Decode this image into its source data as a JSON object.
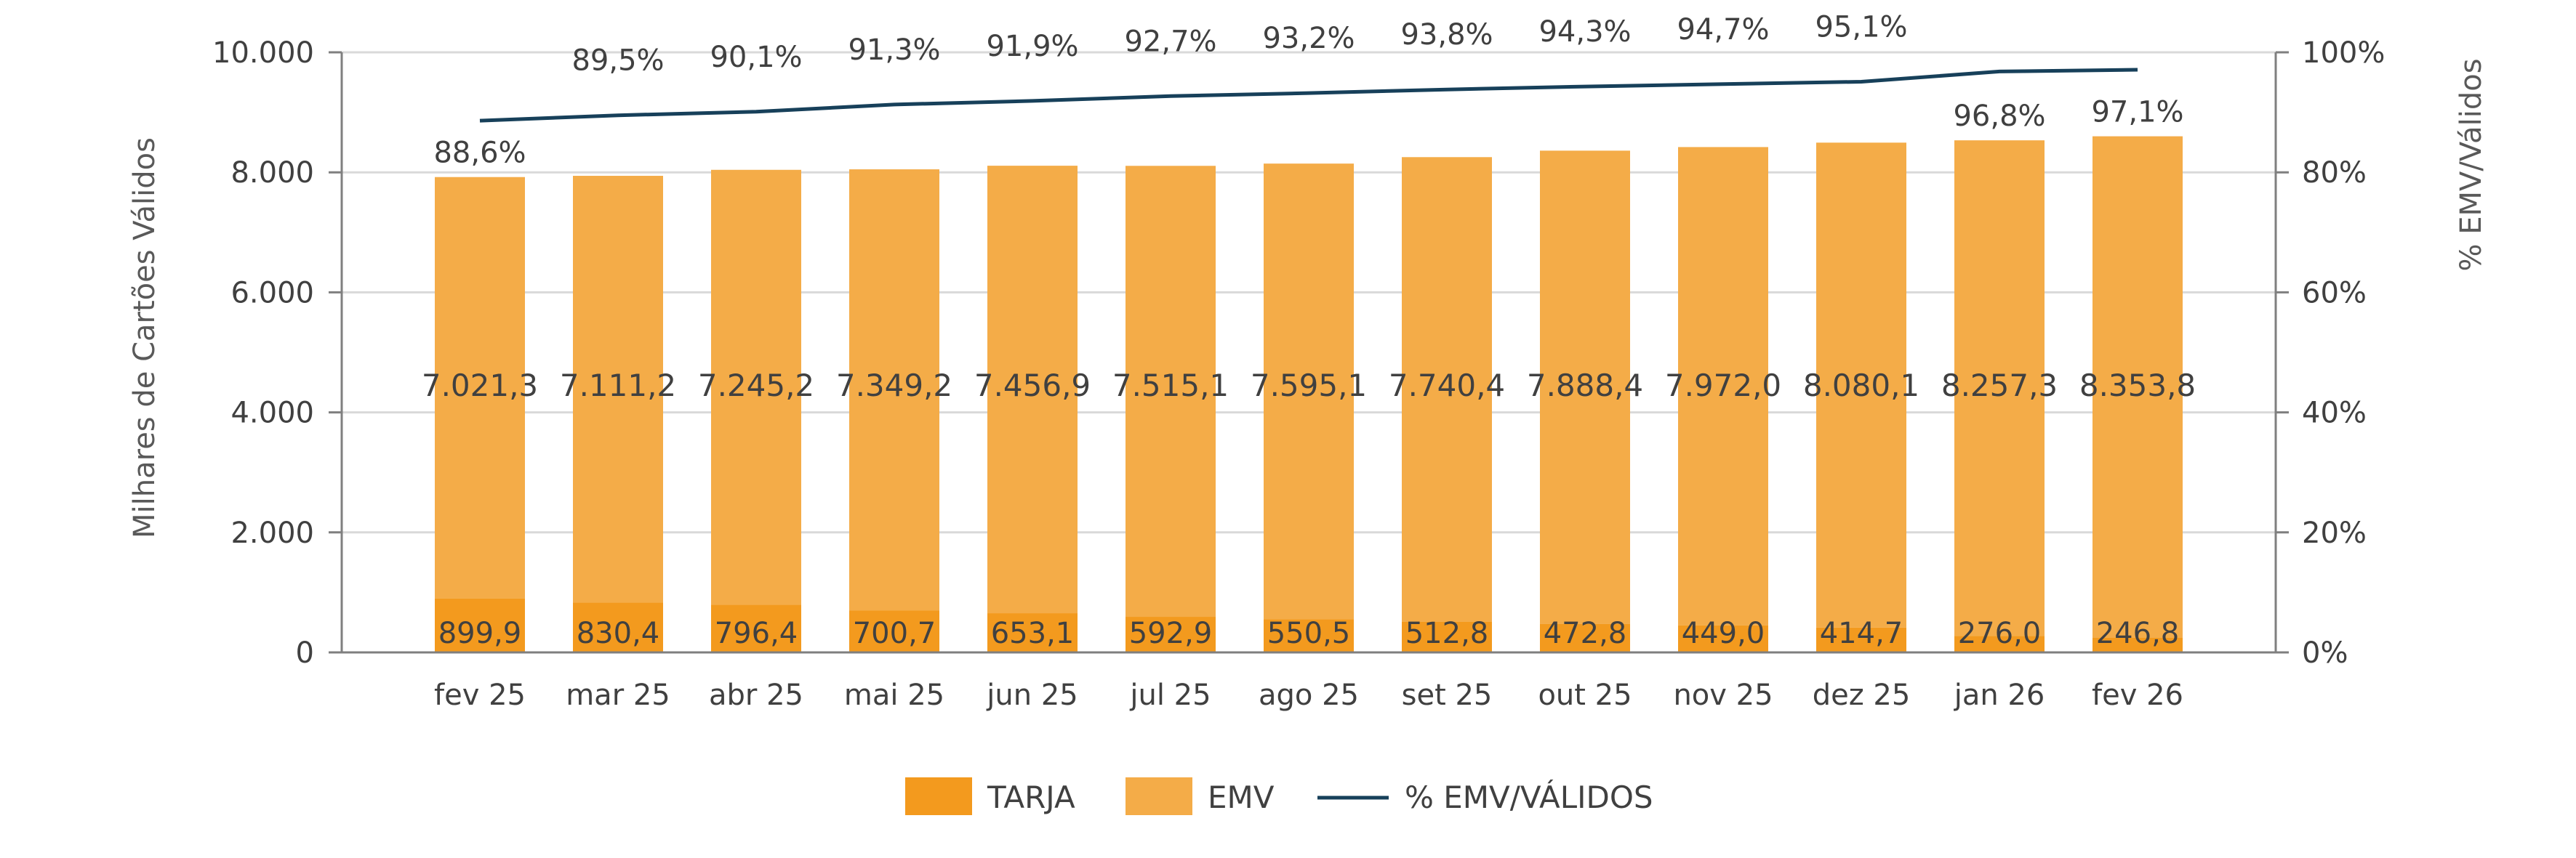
{
  "chart_data": {
    "type": "bar",
    "stacked": true,
    "categories": [
      "fev 25",
      "mar 25",
      "abr 25",
      "mai 25",
      "jun 25",
      "jul 25",
      "ago 25",
      "set 25",
      "out 25",
      "nov 25",
      "dez 25",
      "jan 26",
      "fev 26"
    ],
    "series": [
      {
        "name": "TARJA",
        "color": "#F39A1E",
        "values": [
          899.9,
          830.4,
          796.4,
          700.7,
          653.1,
          592.9,
          550.5,
          512.8,
          472.8,
          449.0,
          414.7,
          276.0,
          246.8
        ],
        "labels": [
          "899,9",
          "830,4",
          "796,4",
          "700,7",
          "653,1",
          "592,9",
          "550,5",
          "512,8",
          "472,8",
          "449,0",
          "414,7",
          "276,0",
          "246,8"
        ]
      },
      {
        "name": "EMV",
        "color": "#F4AC48",
        "values": [
          7021.3,
          7111.2,
          7245.2,
          7349.2,
          7456.9,
          7515.1,
          7595.1,
          7740.4,
          7888.4,
          7972.0,
          8080.1,
          8257.3,
          8353.8
        ],
        "labels": [
          "7.021,3",
          "7.111,2",
          "7.245,2",
          "7.349,2",
          "7.456,9",
          "7.515,1",
          "7.595,1",
          "7.740,4",
          "7.888,4",
          "7.972,0",
          "8.080,1",
          "8.257,3",
          "8.353,8"
        ]
      },
      {
        "name": "% EMV/VÁLIDOS",
        "type": "line",
        "axis": "right",
        "color": "#17405A",
        "values": [
          88.6,
          89.5,
          90.1,
          91.3,
          91.9,
          92.7,
          93.2,
          93.8,
          94.3,
          94.7,
          95.1,
          96.8,
          97.1
        ],
        "labels": [
          "88,6%",
          "89,5%",
          "90,1%",
          "91,3%",
          "91,9%",
          "92,7%",
          "93,2%",
          "93,8%",
          "94,3%",
          "94,7%",
          "95,1%",
          "96,8%",
          "97,1%"
        ]
      }
    ],
    "ylabel": "Milhares de Cartões Válidos",
    "y2label": "% EMV/Válidos",
    "ylim": [
      0,
      10000
    ],
    "y2lim": [
      0,
      100
    ],
    "yticks": [
      0,
      2000,
      4000,
      6000,
      8000,
      10000
    ],
    "ytick_labels": [
      "0",
      "2.000",
      "4.000",
      "6.000",
      "8.000",
      "10.000"
    ],
    "y2ticks": [
      0,
      20,
      40,
      60,
      80,
      100
    ],
    "y2tick_labels": [
      "0%",
      "20%",
      "40%",
      "60%",
      "80%",
      "100%"
    ],
    "grid": true,
    "legend": {
      "position": "bottom",
      "entries": [
        "TARJA",
        "EMV",
        "% EMV/VÁLIDOS"
      ]
    }
  }
}
